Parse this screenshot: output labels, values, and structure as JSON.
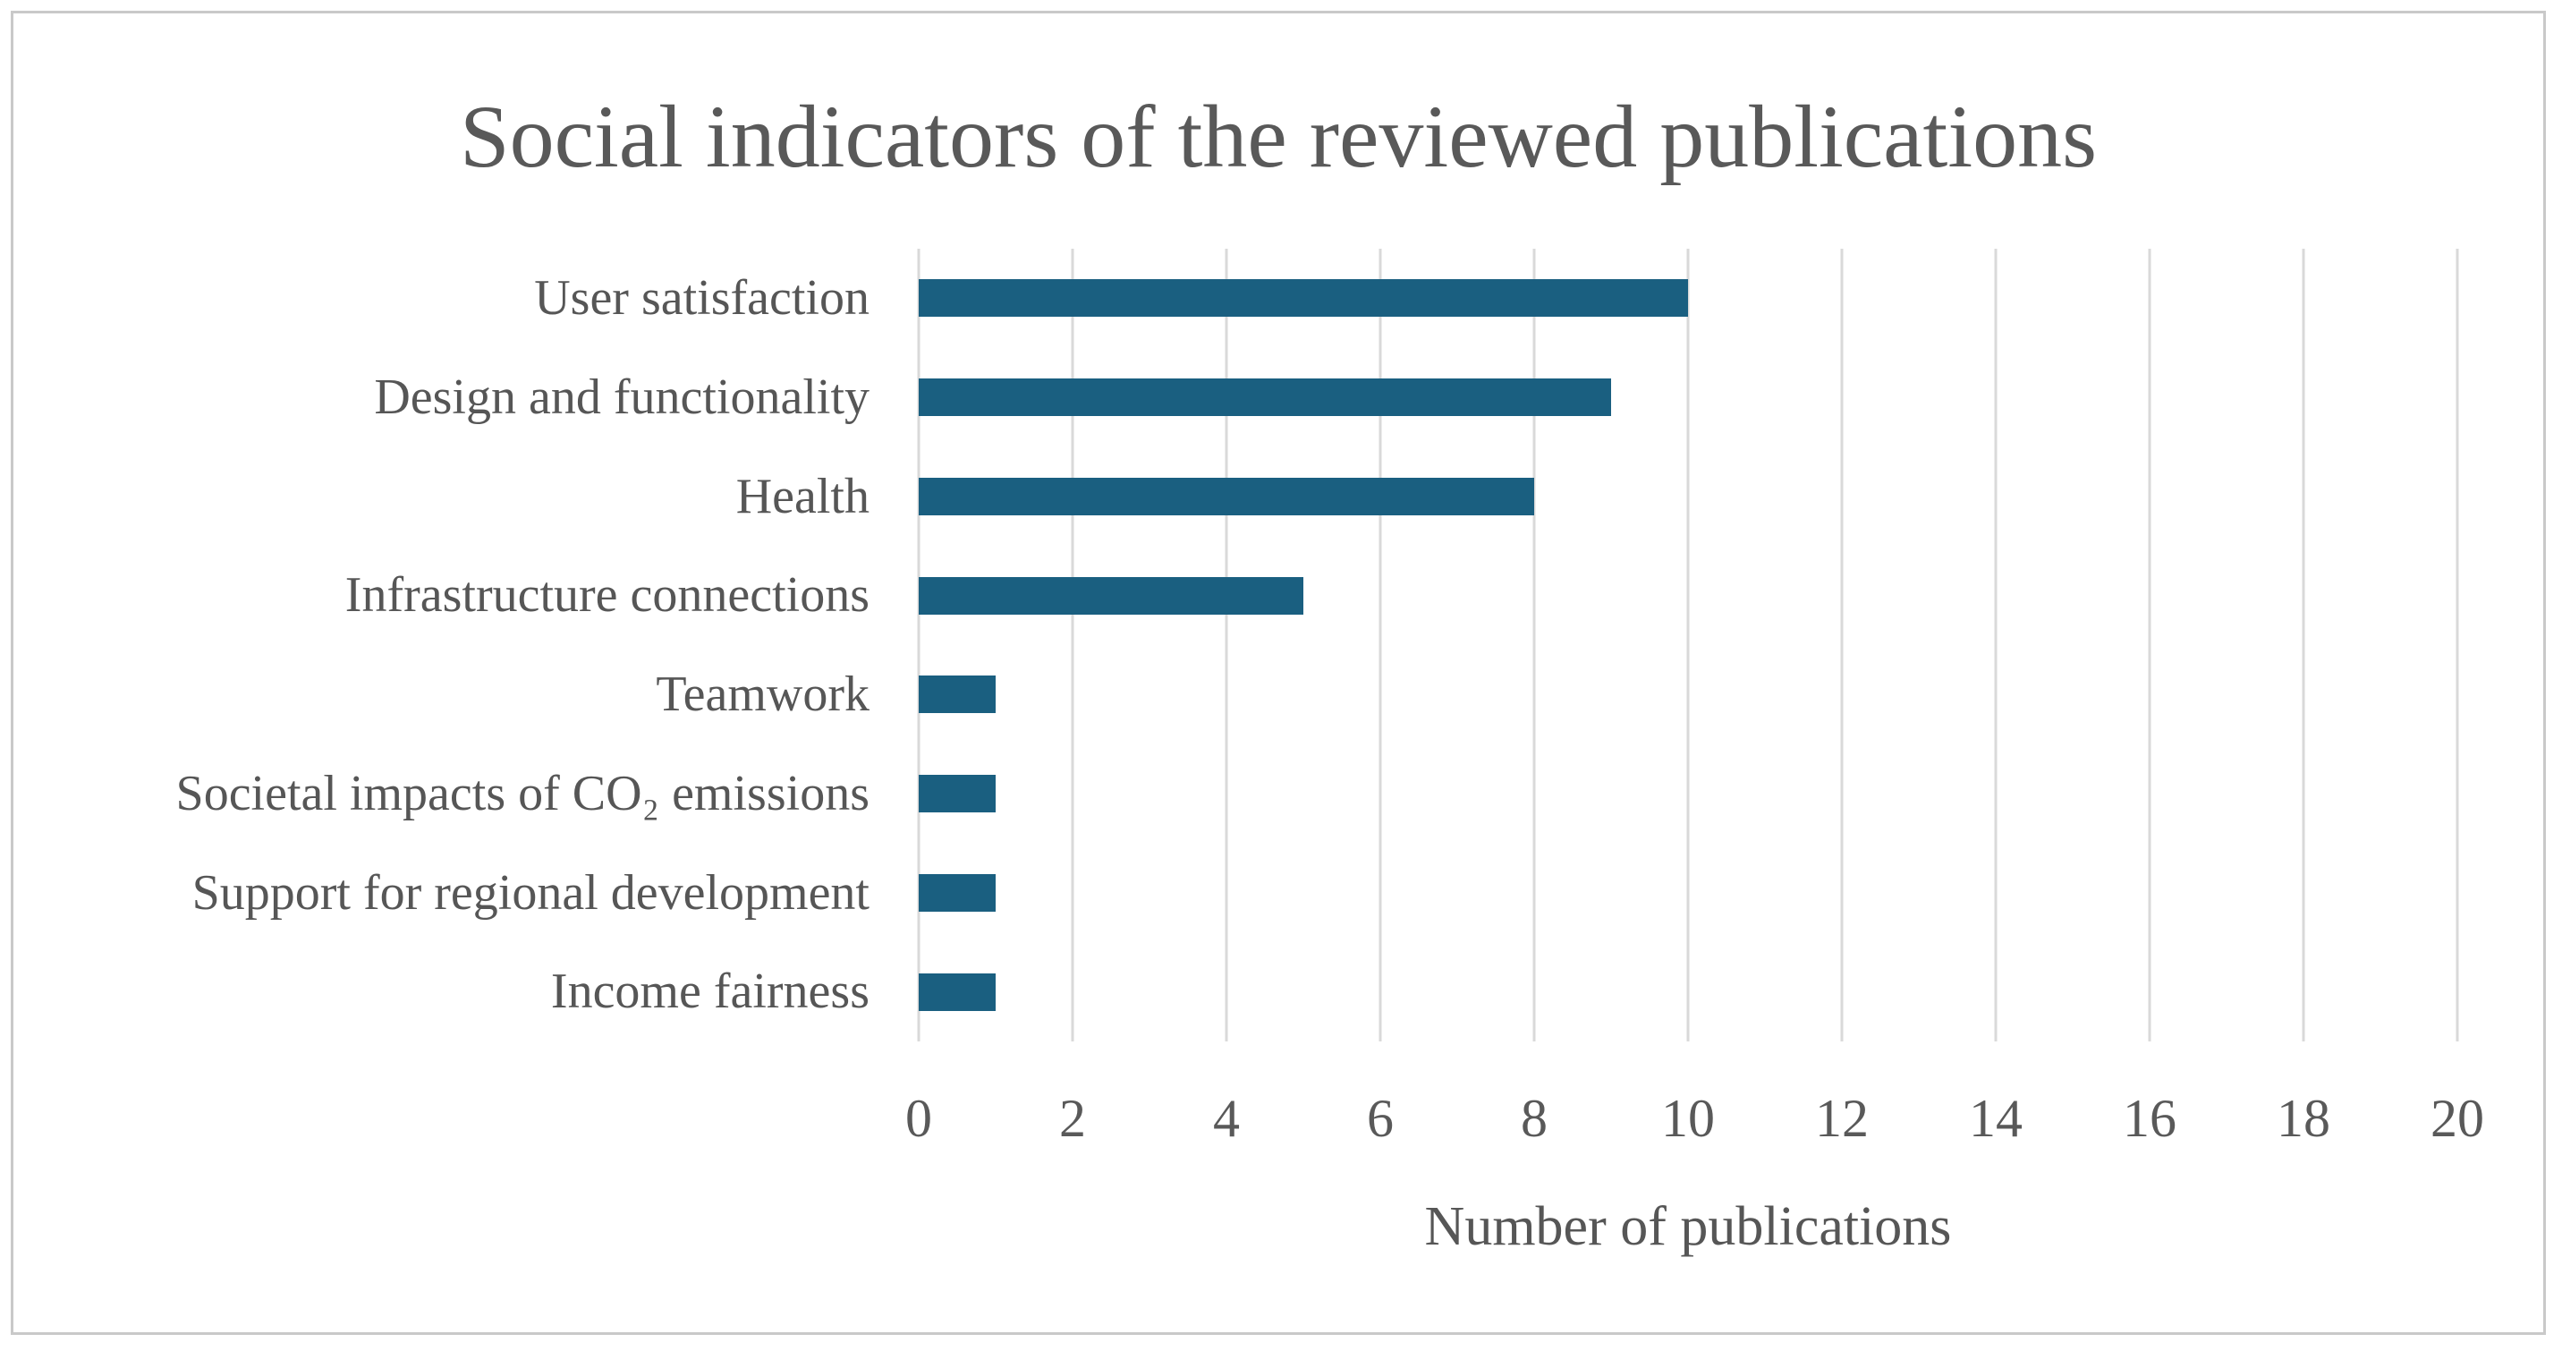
{
  "figure": {
    "title": "Social indicators of the reviewed publications",
    "x_axis_title": "Number of publications"
  },
  "chart_data": {
    "type": "bar",
    "orientation": "horizontal",
    "title": "Social indicators of the reviewed publications",
    "xlabel": "Number of publications",
    "ylabel": "",
    "categories": [
      "User satisfaction",
      "Design and functionality",
      "Health",
      "Infrastructure connections",
      "Teamwork",
      "Societal impacts of CO₂ emissions",
      "Support for regional development",
      "Income fairness"
    ],
    "values": [
      10,
      9,
      8,
      5,
      1,
      1,
      1,
      1
    ],
    "xlim": [
      0,
      20
    ],
    "xticks": [
      0,
      2,
      4,
      6,
      8,
      10,
      12,
      14,
      16,
      18,
      20
    ],
    "grid": true,
    "legend": false,
    "colors": {
      "bar": "#1a5f80",
      "gridline": "#d9d9d9",
      "text": "#595959",
      "frame_border": "#c9c9c9",
      "background": "#ffffff"
    }
  }
}
